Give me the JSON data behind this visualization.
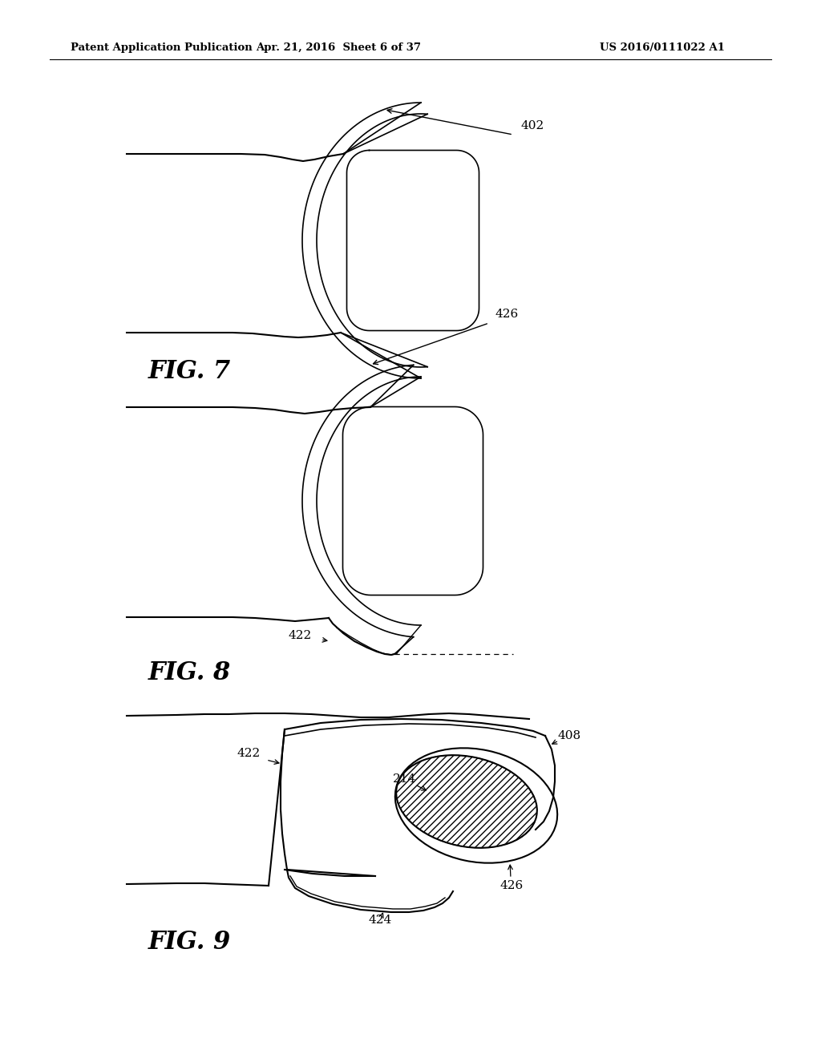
{
  "bg": "#ffffff",
  "hdr_left": "Patent Application Publication",
  "hdr_mid": "Apr. 21, 2016  Sheet 6 of 37",
  "hdr_right": "US 2016/0111022 A1",
  "fig7": "FIG. 7",
  "fig8": "FIG. 8",
  "fig9": "FIG. 9",
  "r402": "402",
  "r426f7": "426",
  "r422f8": "422",
  "r422f9": "422",
  "r408": "408",
  "r214": "214",
  "r424": "424",
  "r426f9": "426"
}
